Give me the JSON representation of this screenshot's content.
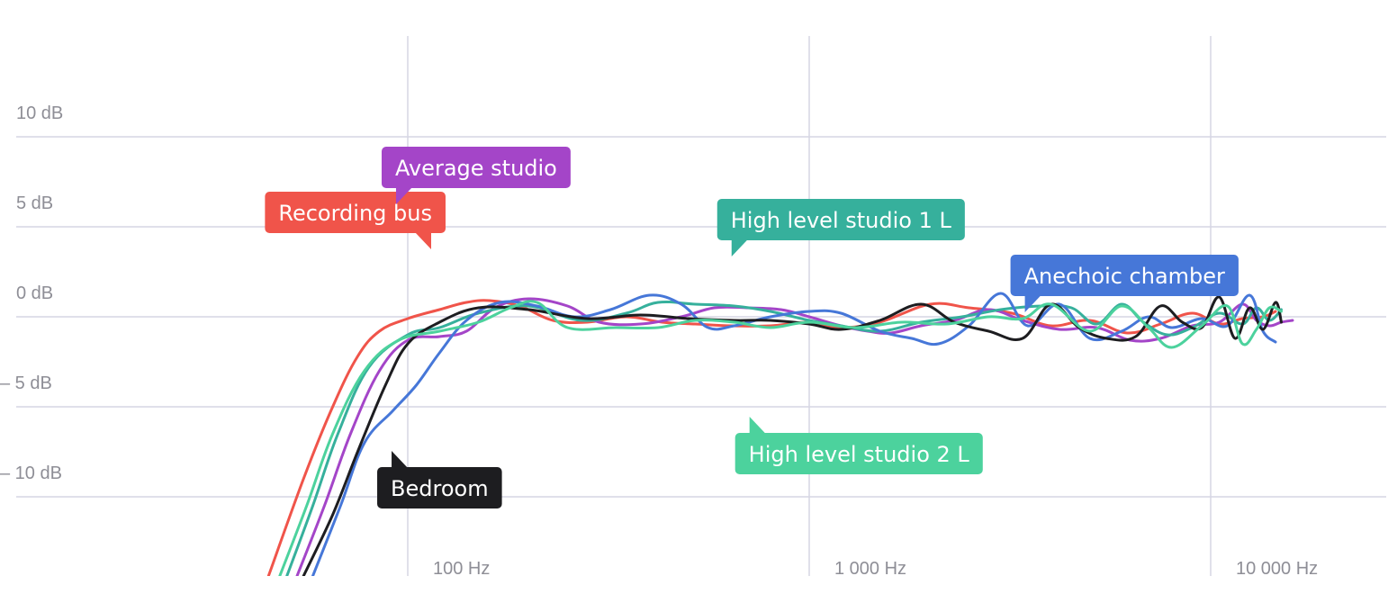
{
  "chart_data": {
    "type": "line",
    "title": "",
    "xlabel": "",
    "ylabel": "",
    "x_scale": "log",
    "xlim": [
      20,
      16000
    ],
    "ylim": [
      -15,
      15
    ],
    "grid": true,
    "x_ticks": [
      {
        "value": 100,
        "label": "100 Hz"
      },
      {
        "value": 1000,
        "label": "1 000 Hz"
      },
      {
        "value": 10000,
        "label": "10 000 Hz"
      }
    ],
    "y_ticks": [
      {
        "value": 10,
        "label": "10 dB"
      },
      {
        "value": 5,
        "label": "5 dB"
      },
      {
        "value": 0,
        "label": "0 dB"
      },
      {
        "value": -5,
        "label": "– 5 dB"
      },
      {
        "value": -10,
        "label": "– 10 dB"
      }
    ],
    "series": [
      {
        "name": "Recording bus",
        "color": "#f0544a",
        "label_anchor": {
          "x": 74,
          "y": 5.8
        },
        "label_pointer": "bottom-right",
        "points": [
          [
            45,
            -14.4
          ],
          [
            55,
            -9
          ],
          [
            65,
            -5
          ],
          [
            75,
            -2.2
          ],
          [
            85,
            -0.8
          ],
          [
            100,
            -0.1
          ],
          [
            120,
            0.4
          ],
          [
            140,
            0.8
          ],
          [
            160,
            0.9
          ],
          [
            190,
            0.6
          ],
          [
            230,
            -0.2
          ],
          [
            280,
            -0.3
          ],
          [
            350,
            0
          ],
          [
            430,
            -0.3
          ],
          [
            520,
            -0.4
          ],
          [
            640,
            -0.5
          ],
          [
            800,
            -0.5
          ],
          [
            1000,
            -0.3
          ],
          [
            1200,
            -0.6
          ],
          [
            1500,
            -0.3
          ],
          [
            2000,
            0.7
          ],
          [
            2500,
            0.5
          ],
          [
            3200,
            0.2
          ],
          [
            4000,
            -0.5
          ],
          [
            5000,
            -0.2
          ],
          [
            6200,
            -0.9
          ],
          [
            7500,
            -0.4
          ],
          [
            9000,
            0.2
          ],
          [
            10500,
            -0.4
          ],
          [
            12000,
            -0.1
          ],
          [
            13500,
            0
          ],
          [
            14500,
            0.3
          ]
        ]
      },
      {
        "name": "Average studio",
        "color": "#a445c8",
        "label_anchor": {
          "x": 148,
          "y": 8.3
        },
        "label_pointer": "bottom-left",
        "points": [
          [
            53,
            -14.4
          ],
          [
            62,
            -10.5
          ],
          [
            72,
            -6.5
          ],
          [
            85,
            -3
          ],
          [
            100,
            -1.3
          ],
          [
            120,
            -1.1
          ],
          [
            140,
            -0.8
          ],
          [
            165,
            0.5
          ],
          [
            200,
            1
          ],
          [
            250,
            0.6
          ],
          [
            300,
            -0.3
          ],
          [
            380,
            -0.4
          ],
          [
            480,
            0
          ],
          [
            580,
            0.5
          ],
          [
            700,
            0.5
          ],
          [
            850,
            0.4
          ],
          [
            1000,
            0
          ],
          [
            1200,
            -0.5
          ],
          [
            1400,
            -0.8
          ],
          [
            1600,
            -0.9
          ],
          [
            1900,
            -0.5
          ],
          [
            2300,
            -0.2
          ],
          [
            2800,
            0.4
          ],
          [
            3400,
            -0.2
          ],
          [
            4200,
            -0.7
          ],
          [
            5200,
            -0.6
          ],
          [
            6300,
            -1.3
          ],
          [
            7500,
            -1.2
          ],
          [
            9000,
            -0.5
          ],
          [
            10500,
            -0.3
          ],
          [
            12000,
            0.7
          ],
          [
            13000,
            -0.2
          ],
          [
            14000,
            -0.5
          ],
          [
            15000,
            -0.3
          ],
          [
            16000,
            -0.2
          ]
        ]
      },
      {
        "name": "High level studio 1 L",
        "color": "#36b09c",
        "label_anchor": {
          "x": 1200,
          "y": 5.4
        },
        "label_pointer": "bottom-left",
        "points": [
          [
            50,
            -14.4
          ],
          [
            58,
            -10.5
          ],
          [
            67,
            -6.5
          ],
          [
            80,
            -2.8
          ],
          [
            100,
            -1
          ],
          [
            120,
            -0.6
          ],
          [
            150,
            0.2
          ],
          [
            200,
            0.6
          ],
          [
            270,
            -0.2
          ],
          [
            350,
            0.2
          ],
          [
            420,
            0.8
          ],
          [
            520,
            0.7
          ],
          [
            650,
            0.6
          ],
          [
            800,
            0.3
          ],
          [
            1000,
            -0.2
          ],
          [
            1200,
            -0.5
          ],
          [
            1500,
            -0.8
          ],
          [
            1900,
            -0.3
          ],
          [
            2400,
            0
          ],
          [
            3000,
            0.4
          ],
          [
            3800,
            0.6
          ],
          [
            4500,
            0.5
          ],
          [
            5200,
            -0.4
          ],
          [
            6000,
            0.7
          ],
          [
            6800,
            -0.3
          ],
          [
            7800,
            -1
          ],
          [
            9000,
            -0.6
          ],
          [
            10500,
            0.2
          ],
          [
            12000,
            -0.4
          ],
          [
            13000,
            0.5
          ],
          [
            14000,
            -0.2
          ],
          [
            15000,
            0.4
          ]
        ]
      },
      {
        "name": "Anechoic chamber",
        "color": "#4677d8",
        "label_anchor": {
          "x": 6100,
          "y": 2.3
        },
        "label_pointer": "bottom-left",
        "points": [
          [
            58,
            -14.4
          ],
          [
            68,
            -10.5
          ],
          [
            78,
            -7
          ],
          [
            92,
            -5.2
          ],
          [
            105,
            -3.8
          ],
          [
            120,
            -2
          ],
          [
            140,
            -0.2
          ],
          [
            170,
            0.8
          ],
          [
            210,
            0.6
          ],
          [
            260,
            0
          ],
          [
            320,
            0.4
          ],
          [
            400,
            1.2
          ],
          [
            480,
            0.7
          ],
          [
            560,
            -0.6
          ],
          [
            650,
            -0.5
          ],
          [
            800,
            0
          ],
          [
            1000,
            0.3
          ],
          [
            1200,
            0.2
          ],
          [
            1500,
            -0.8
          ],
          [
            1800,
            -1.2
          ],
          [
            2100,
            -1.5
          ],
          [
            2500,
            -0.5
          ],
          [
            3000,
            1.3
          ],
          [
            3500,
            -0.5
          ],
          [
            4200,
            0.7
          ],
          [
            5000,
            -1.2
          ],
          [
            6000,
            -0.8
          ],
          [
            7000,
            0
          ],
          [
            8000,
            -0.6
          ],
          [
            9500,
            -0.1
          ],
          [
            11000,
            -0.5
          ],
          [
            12500,
            1.2
          ],
          [
            13500,
            -0.8
          ],
          [
            14500,
            -1.4
          ]
        ]
      },
      {
        "name": "Bedroom",
        "color": "#1d1d20",
        "label_anchor": {
          "x": 120,
          "y": -9.5
        },
        "label_pointer": "top-left",
        "points": [
          [
            55,
            -14.4
          ],
          [
            65,
            -11
          ],
          [
            75,
            -7.5
          ],
          [
            88,
            -3.8
          ],
          [
            100,
            -1.5
          ],
          [
            120,
            -0.3
          ],
          [
            150,
            0.5
          ],
          [
            200,
            0.4
          ],
          [
            280,
            -0.1
          ],
          [
            380,
            0.1
          ],
          [
            500,
            -0.1
          ],
          [
            650,
            -0.2
          ],
          [
            800,
            -0.2
          ],
          [
            1000,
            -0.4
          ],
          [
            1200,
            -0.7
          ],
          [
            1500,
            -0.2
          ],
          [
            1900,
            0.7
          ],
          [
            2300,
            -0.3
          ],
          [
            2800,
            -0.8
          ],
          [
            3400,
            -1.2
          ],
          [
            4000,
            0.7
          ],
          [
            4700,
            -0.6
          ],
          [
            5500,
            -1.2
          ],
          [
            6500,
            -1.1
          ],
          [
            7500,
            0.6
          ],
          [
            8500,
            -0.3
          ],
          [
            9500,
            -0.6
          ],
          [
            10500,
            1.1
          ],
          [
            11500,
            -1.2
          ],
          [
            12500,
            0.5
          ],
          [
            13500,
            -0.7
          ],
          [
            14500,
            0.8
          ],
          [
            15000,
            -0.3
          ]
        ]
      },
      {
        "name": "High level studio 2 L",
        "color": "#4cd29d",
        "label_anchor": {
          "x": 1330,
          "y": -7.6
        },
        "label_pointer": "top-left",
        "points": [
          [
            48,
            -14.4
          ],
          [
            56,
            -10.5
          ],
          [
            65,
            -6.5
          ],
          [
            78,
            -3
          ],
          [
            95,
            -1.3
          ],
          [
            120,
            -0.8
          ],
          [
            150,
            -0.3
          ],
          [
            180,
            0.5
          ],
          [
            210,
            0.8
          ],
          [
            250,
            -0.6
          ],
          [
            330,
            -0.6
          ],
          [
            420,
            -0.6
          ],
          [
            520,
            -0.2
          ],
          [
            650,
            -0.3
          ],
          [
            800,
            -0.6
          ],
          [
            1000,
            -0.3
          ],
          [
            1300,
            -0.6
          ],
          [
            1700,
            -0.3
          ],
          [
            2200,
            -0.4
          ],
          [
            2800,
            0
          ],
          [
            3400,
            -0.1
          ],
          [
            4000,
            0.7
          ],
          [
            5000,
            -0.8
          ],
          [
            6000,
            0.6
          ],
          [
            7000,
            -0.6
          ],
          [
            8000,
            -1.7
          ],
          [
            9500,
            -0.5
          ],
          [
            11000,
            0.6
          ],
          [
            12000,
            -1.5
          ],
          [
            13000,
            -0.7
          ],
          [
            14000,
            0.5
          ],
          [
            15000,
            0.3
          ]
        ]
      }
    ]
  }
}
